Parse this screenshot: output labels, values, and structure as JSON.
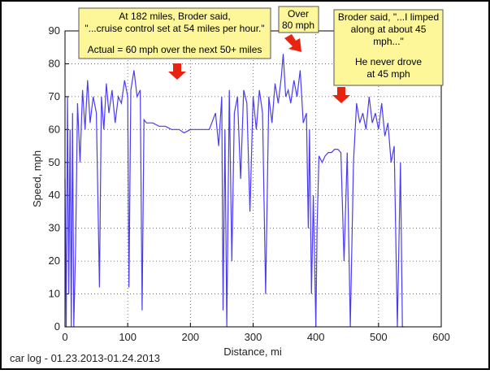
{
  "chart_data": {
    "type": "line",
    "xlabel": "Distance, mi",
    "ylabel": "Speed, mph",
    "caption": "car log - 01.23.2013-01.24.2013",
    "annotations": [
      {
        "lines": [
          "At 182 miles, Broder said,",
          "\"...cruise control set at 54 miles per hour.\"",
          "Actual = 60 mph over the next 50+ miles"
        ]
      },
      {
        "lines": [
          "Over",
          "80 mph"
        ]
      },
      {
        "lines": [
          "Broder said, \"...I limped",
          "along at about 45",
          "mph...\"",
          "He never drove",
          "at 45 mph"
        ]
      }
    ],
    "color": "#4b3cf0",
    "x": [
      0,
      2,
      4,
      6,
      8,
      10,
      12,
      14,
      17,
      20,
      24,
      28,
      32,
      36,
      40,
      45,
      50,
      55,
      58,
      62,
      66,
      70,
      75,
      80,
      85,
      90,
      95,
      100,
      102,
      105,
      110,
      115,
      120,
      123,
      126,
      130,
      140,
      150,
      160,
      170,
      182,
      190,
      200,
      210,
      220,
      230,
      240,
      245,
      250,
      252,
      255,
      258,
      262,
      266,
      270,
      275,
      280,
      285,
      290,
      295,
      300,
      305,
      310,
      315,
      320,
      325,
      330,
      335,
      340,
      345,
      348,
      352,
      356,
      360,
      365,
      370,
      375,
      380,
      385,
      388,
      390,
      393,
      396,
      400,
      402,
      405,
      410,
      415,
      420,
      425,
      430,
      435,
      440,
      445,
      450,
      455,
      460,
      465,
      470,
      475,
      480,
      485,
      490,
      495,
      500,
      505,
      510,
      515,
      520,
      525,
      530,
      535,
      538,
      540
    ],
    "values": [
      45,
      0,
      70,
      10,
      60,
      0,
      65,
      0,
      25,
      68,
      50,
      72,
      60,
      75,
      62,
      70,
      65,
      12,
      70,
      60,
      74,
      65,
      72,
      62,
      70,
      68,
      75,
      70,
      12,
      72,
      78,
      70,
      72,
      5,
      63,
      62,
      62,
      61,
      61,
      60,
      60,
      59,
      60,
      60,
      60,
      60,
      65,
      55,
      70,
      5,
      60,
      0,
      72,
      20,
      65,
      70,
      45,
      72,
      68,
      35,
      70,
      60,
      72,
      65,
      10,
      70,
      62,
      74,
      68,
      76,
      83,
      70,
      72,
      68,
      75,
      70,
      78,
      62,
      65,
      30,
      60,
      10,
      40,
      0,
      30,
      52,
      50,
      52,
      53,
      53,
      54,
      54,
      53,
      20,
      53,
      0,
      50,
      68,
      62,
      65,
      60,
      70,
      62,
      65,
      60,
      68,
      58,
      62,
      50,
      55,
      0,
      50,
      0,
      0
    ],
    "xlim": [
      0,
      600
    ],
    "ylim": [
      0,
      90
    ],
    "xticks": [
      0,
      100,
      200,
      300,
      400,
      500,
      600
    ],
    "yticks": [
      0,
      10,
      20,
      30,
      40,
      50,
      60,
      70,
      80,
      90
    ],
    "grid": true
  }
}
